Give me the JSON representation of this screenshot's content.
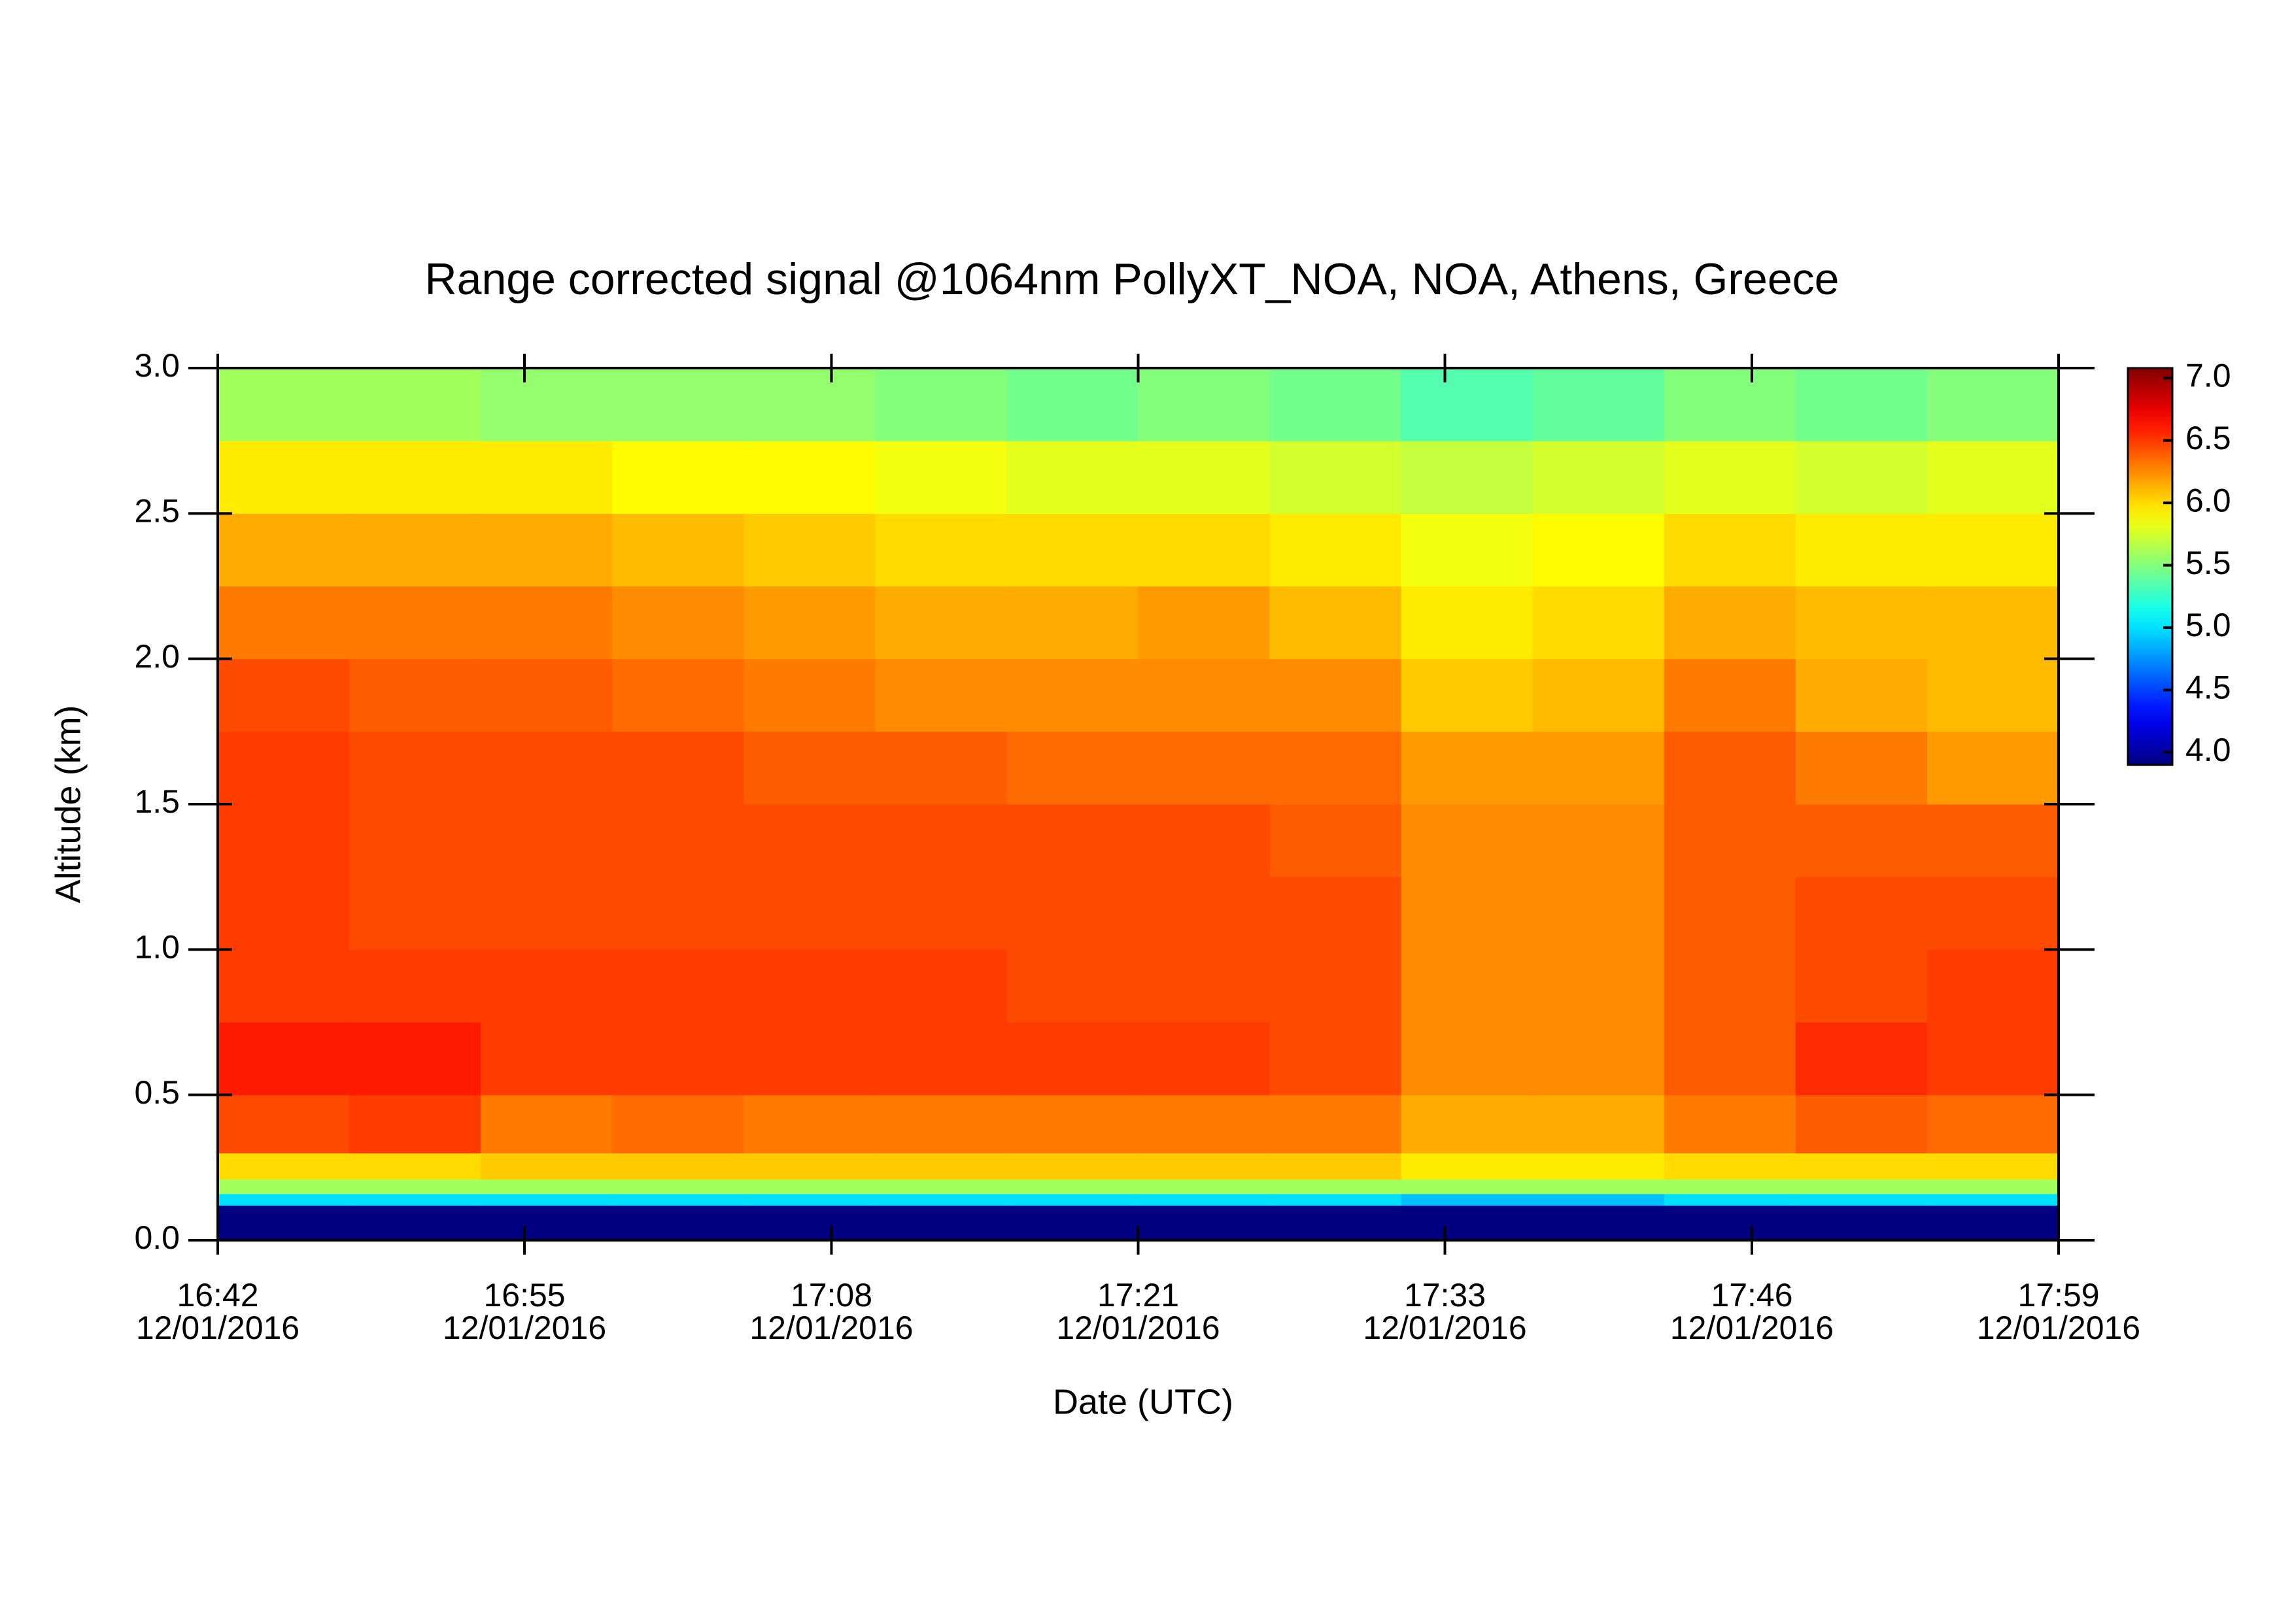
{
  "chart_data": {
    "type": "heatmap",
    "title": "Range corrected signal @1064nm  PollyXT_NOA, NOA, Athens, Greece",
    "x_label": "Date (UTC)",
    "y_label": "Altitude (km)",
    "xlim": [
      1002,
      1079
    ],
    "xticks": [
      {
        "value": 1002,
        "label": "16:42"
      },
      {
        "value": 1014.83,
        "label": "16:55"
      },
      {
        "value": 1027.67,
        "label": "17:08"
      },
      {
        "value": 1040.5,
        "label": "17:21"
      },
      {
        "value": 1053.33,
        "label": "17:33"
      },
      {
        "value": 1066.17,
        "label": "17:46"
      },
      {
        "value": 1079,
        "label": "17:59"
      }
    ],
    "xtick_dates": [
      "12/01/2016",
      "12/01/2016",
      "12/01/2016",
      "12/01/2016",
      "12/01/2016",
      "12/01/2016",
      "12/01/2016"
    ],
    "ylim": [
      0,
      3
    ],
    "yticks": [
      {
        "value": 0,
        "label": "0.0"
      },
      0.5,
      {
        "value": 1,
        "label": "1.0"
      },
      1.5,
      {
        "value": 2,
        "label": "2.0"
      },
      2.5,
      {
        "value": 3,
        "label": "3.0"
      }
    ],
    "colormap": "jet",
    "clim": [
      3.9,
      7.08
    ],
    "cticks": [
      {
        "value": 4,
        "label": "4.0"
      },
      4.5,
      {
        "value": 5,
        "label": "5.0"
      },
      5.5,
      {
        "value": 6,
        "label": "6.0"
      },
      6.5,
      {
        "value": 7,
        "label": "7.0"
      }
    ],
    "xbins": [
      1002,
      1007.5,
      1013,
      1018.5,
      1024,
      1029.5,
      1035,
      1040.5,
      1046,
      1051.5,
      1057,
      1062.5,
      1068,
      1073.5,
      1079
    ],
    "ybins": [
      0,
      0.12,
      0.16,
      0.21,
      0.3,
      0.5,
      0.75,
      1.0,
      1.25,
      1.5,
      1.75,
      2.0,
      2.25,
      2.5,
      2.75,
      3.0
    ],
    "values": [
      [
        3.9,
        3.9,
        3.9,
        3.9,
        3.9,
        3.9,
        3.9,
        3.9,
        3.9,
        3.9,
        3.9,
        3.9,
        3.9,
        3.9
      ],
      [
        5.0,
        5.0,
        5.0,
        5.0,
        5.0,
        5.0,
        5.0,
        5.0,
        5.0,
        4.9,
        4.9,
        5.0,
        5.0,
        5.0
      ],
      [
        5.6,
        5.6,
        5.6,
        5.6,
        5.6,
        5.6,
        5.6,
        5.6,
        5.6,
        5.6,
        5.6,
        5.6,
        5.6,
        5.6
      ],
      [
        6.0,
        6.0,
        6.05,
        6.05,
        6.05,
        6.05,
        6.05,
        6.05,
        6.05,
        5.95,
        5.95,
        6.0,
        6.0,
        6.0
      ],
      [
        6.45,
        6.5,
        6.3,
        6.35,
        6.3,
        6.3,
        6.3,
        6.3,
        6.3,
        6.15,
        6.15,
        6.3,
        6.4,
        6.35
      ],
      [
        6.6,
        6.6,
        6.5,
        6.5,
        6.5,
        6.5,
        6.5,
        6.5,
        6.45,
        6.25,
        6.25,
        6.4,
        6.55,
        6.5
      ],
      [
        6.5,
        6.5,
        6.5,
        6.5,
        6.5,
        6.5,
        6.45,
        6.45,
        6.45,
        6.25,
        6.25,
        6.4,
        6.45,
        6.5
      ],
      [
        6.5,
        6.45,
        6.45,
        6.45,
        6.45,
        6.45,
        6.45,
        6.45,
        6.45,
        6.25,
        6.25,
        6.4,
        6.45,
        6.45
      ],
      [
        6.5,
        6.45,
        6.45,
        6.45,
        6.45,
        6.45,
        6.45,
        6.45,
        6.4,
        6.25,
        6.25,
        6.4,
        6.4,
        6.4
      ],
      [
        6.5,
        6.45,
        6.45,
        6.45,
        6.4,
        6.4,
        6.35,
        6.35,
        6.35,
        6.2,
        6.2,
        6.4,
        6.3,
        6.2
      ],
      [
        6.45,
        6.4,
        6.4,
        6.35,
        6.3,
        6.25,
        6.25,
        6.25,
        6.25,
        6.05,
        6.1,
        6.3,
        6.15,
        6.1
      ],
      [
        6.3,
        6.3,
        6.3,
        6.25,
        6.2,
        6.15,
        6.15,
        6.2,
        6.1,
        5.95,
        6.0,
        6.15,
        6.1,
        6.1
      ],
      [
        6.15,
        6.15,
        6.15,
        6.1,
        6.05,
        6.0,
        6.0,
        6.0,
        5.95,
        5.85,
        5.9,
        6.0,
        5.95,
        5.95
      ],
      [
        5.95,
        5.95,
        5.95,
        5.9,
        5.9,
        5.85,
        5.8,
        5.8,
        5.75,
        5.7,
        5.75,
        5.8,
        5.75,
        5.8
      ],
      [
        5.6,
        5.6,
        5.55,
        5.55,
        5.55,
        5.5,
        5.45,
        5.5,
        5.45,
        5.35,
        5.4,
        5.5,
        5.45,
        5.5
      ]
    ]
  }
}
